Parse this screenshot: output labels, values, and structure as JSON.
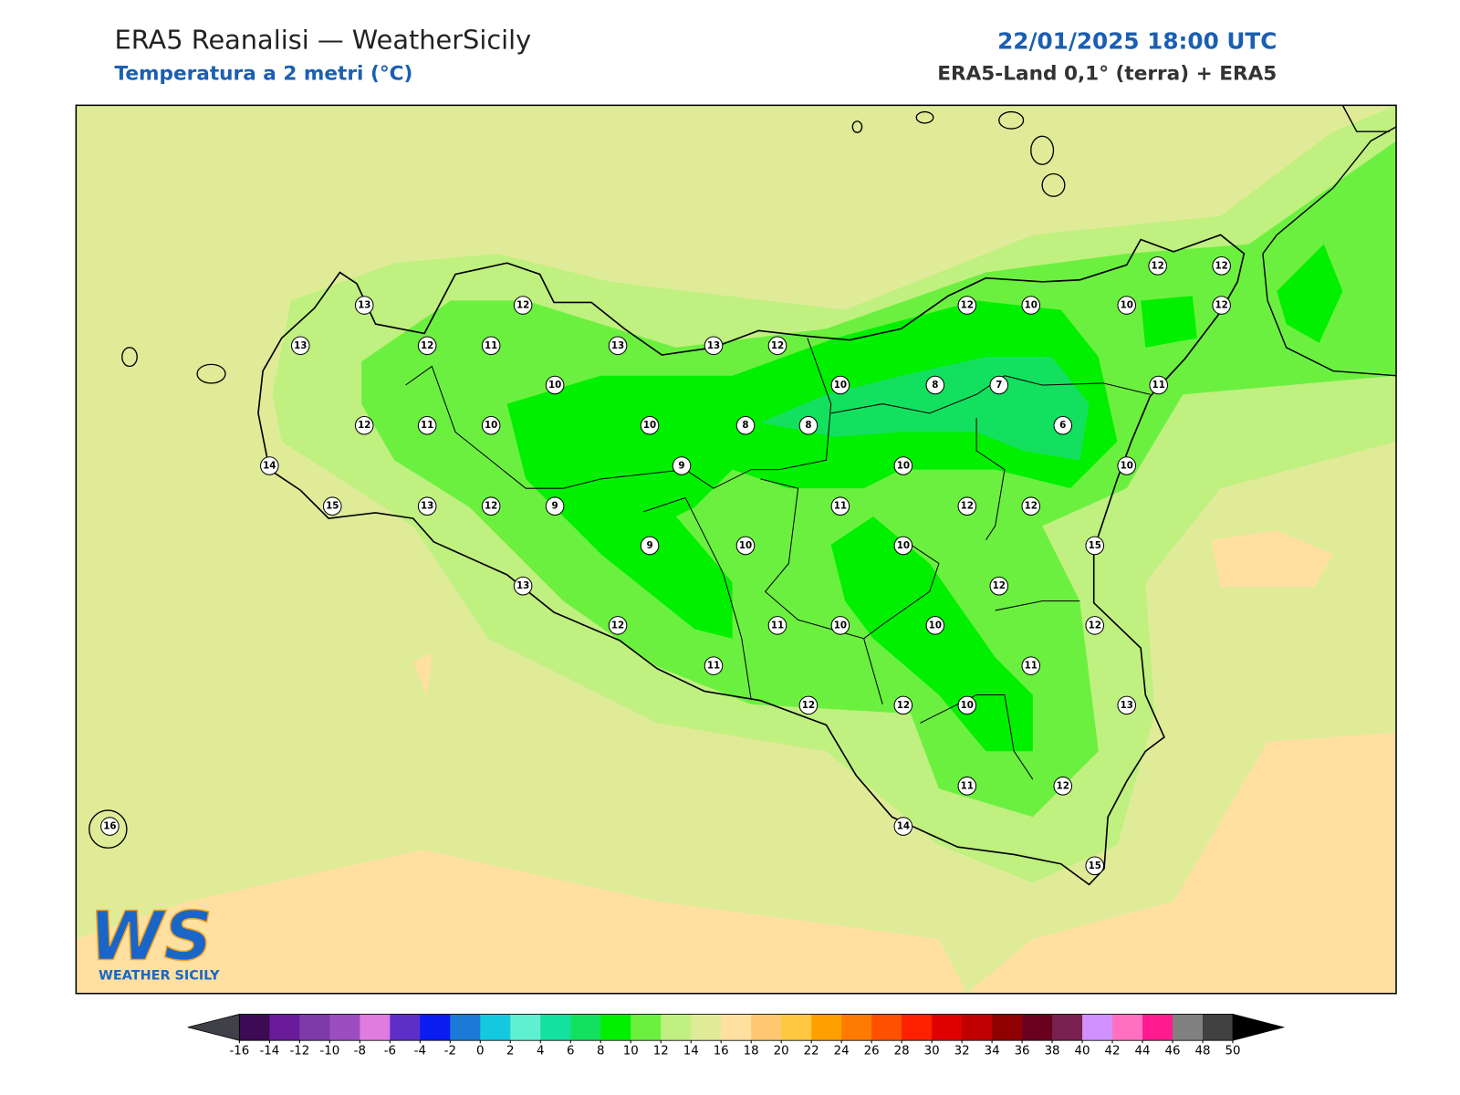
{
  "header": {
    "title": "ERA5 Reanalisi — WeatherSicily",
    "subtitle": "Temperatura a 2 metri (°C)",
    "date": "22/01/2025 18:00 UTC",
    "source": "ERA5-Land 0,1° (terra) + ERA5"
  },
  "stations": [
    13,
    12,
    13,
    12,
    11,
    13,
    13,
    12,
    10,
    12,
    11,
    10,
    10,
    8,
    8,
    14,
    9,
    15,
    13,
    12,
    9,
    9,
    10,
    13,
    12,
    11,
    11,
    10,
    12,
    12,
    12,
    12,
    10,
    10,
    12,
    10,
    8,
    7,
    11,
    6,
    10,
    10,
    11,
    12,
    12,
    10,
    15,
    12,
    10,
    12,
    11,
    13,
    12,
    10,
    11,
    12,
    14,
    15,
    16
  ],
  "colorbar": {
    "ticks": [
      -16,
      -14,
      -12,
      -10,
      -8,
      -6,
      -4,
      -2,
      0,
      2,
      4,
      6,
      8,
      10,
      12,
      14,
      16,
      18,
      20,
      22,
      24,
      26,
      28,
      30,
      32,
      34,
      36,
      38,
      40,
      42,
      44,
      46,
      48,
      50
    ],
    "colors": [
      "#3d0a55",
      "#6a1b9a",
      "#7e3aa8",
      "#9c4dbf",
      "#e07be0",
      "#5e2ec9",
      "#0a1cf0",
      "#1a7ad6",
      "#14c8e0",
      "#5ef0d0",
      "#14e0a0",
      "#14e060",
      "#00f000",
      "#6cf040",
      "#c0f080",
      "#e0eb98",
      "#ffe0a0",
      "#ffc870",
      "#ffc840",
      "#ffa000",
      "#ff7a00",
      "#ff5000",
      "#ff2000",
      "#e00000",
      "#c00000",
      "#900000",
      "#6a0020",
      "#7a2050",
      "#d090ff",
      "#ff70c0",
      "#ff1a90",
      "#808080",
      "#404040"
    ],
    "under_color": "#404048",
    "over_color": "#000000"
  },
  "logo": {
    "mark": "WS",
    "name": "WEATHER SICILY"
  }
}
